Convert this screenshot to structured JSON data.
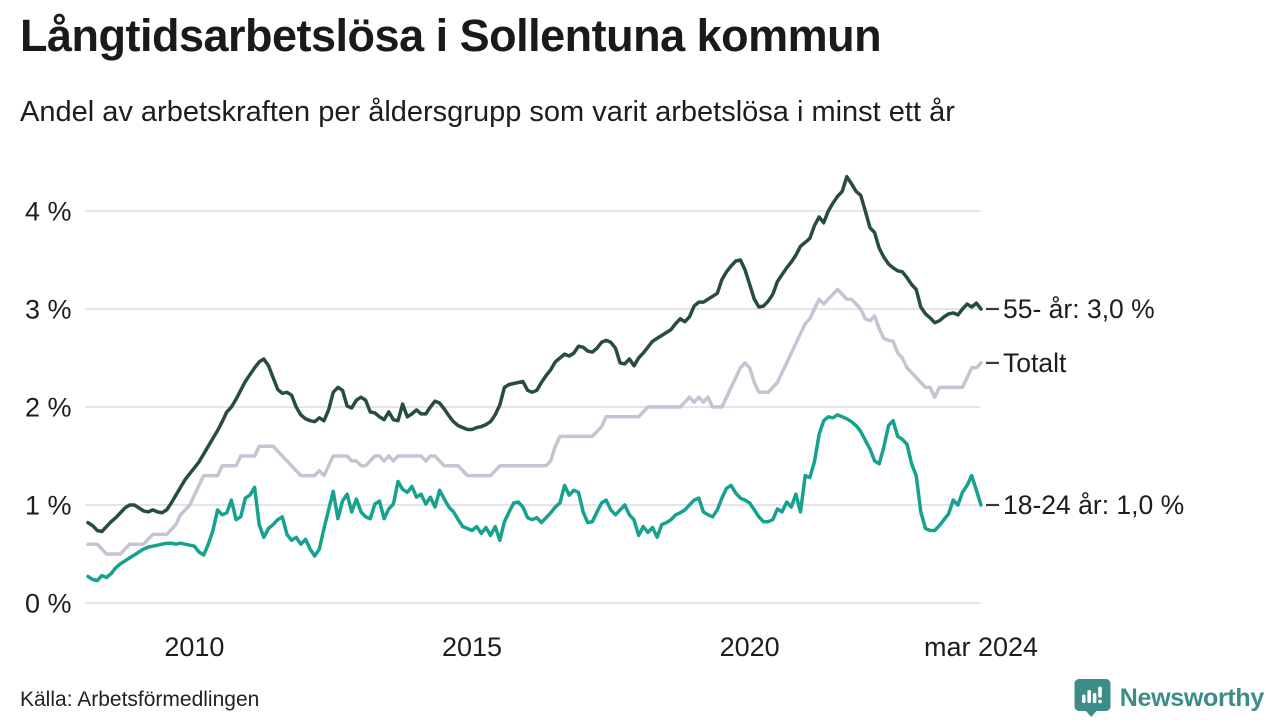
{
  "header": {
    "title": "Långtidsarbetslösa i Sollentuna kommun",
    "subtitle": "Andel av arbetskraften per åldersgrupp som varit arbetslösa i minst ett år"
  },
  "footer": {
    "source": "Källa: Arbetsförmedlingen",
    "brand": "Newsworthy"
  },
  "colors": {
    "series_55": "#294c41",
    "series_total": "#c6c4d2",
    "series_18_24": "#16a28f",
    "gridline": "#e6e4ea",
    "text": "#1d1d1d",
    "end_label_dash": "#3a3a3a",
    "brand_teal": "#3c8c87"
  },
  "chart_data": {
    "type": "line",
    "title": "Långtidsarbetslösa i Sollentuna kommun",
    "subtitle": "Andel av arbetskraften per åldersgrupp som varit arbetslösa i minst ett år",
    "source": "Källa: Arbetsförmedlingen",
    "x_start": "2008-02",
    "x_end": "2024-03",
    "frequency": "monthly",
    "grid": "horizontal",
    "legend_position": "end-of-line-labels",
    "ylim": [
      0,
      4.5
    ],
    "unit": "%",
    "y_ticks": [
      {
        "value": 0,
        "label": "0 %"
      },
      {
        "value": 1,
        "label": "1 %"
      },
      {
        "value": 2,
        "label": "2 %"
      },
      {
        "value": 3,
        "label": "3 %"
      },
      {
        "value": 4,
        "label": "4 %"
      }
    ],
    "x_ticks": [
      {
        "month_index": 23,
        "label": "2010"
      },
      {
        "month_index": 83,
        "label": "2015"
      },
      {
        "month_index": 143,
        "label": "2020"
      },
      {
        "month_index": 193,
        "label": "mar 2024"
      }
    ],
    "series": [
      {
        "name": "Totalt",
        "end_label": "Totalt",
        "end_value": 2.45,
        "color": "#c6c4d2",
        "values": [
          0.6,
          0.6,
          0.6,
          0.55,
          0.5,
          0.5,
          0.5,
          0.5,
          0.55,
          0.6,
          0.6,
          0.6,
          0.6,
          0.65,
          0.7,
          0.7,
          0.7,
          0.7,
          0.75,
          0.8,
          0.9,
          0.95,
          1.0,
          1.1,
          1.2,
          1.3,
          1.3,
          1.3,
          1.3,
          1.4,
          1.4,
          1.4,
          1.4,
          1.5,
          1.5,
          1.5,
          1.5,
          1.6,
          1.6,
          1.6,
          1.6,
          1.55,
          1.5,
          1.45,
          1.4,
          1.35,
          1.3,
          1.3,
          1.3,
          1.3,
          1.35,
          1.3,
          1.4,
          1.5,
          1.5,
          1.5,
          1.5,
          1.45,
          1.45,
          1.4,
          1.4,
          1.45,
          1.5,
          1.5,
          1.45,
          1.5,
          1.45,
          1.5,
          1.5,
          1.5,
          1.5,
          1.5,
          1.5,
          1.45,
          1.5,
          1.5,
          1.45,
          1.4,
          1.4,
          1.4,
          1.4,
          1.35,
          1.3,
          1.3,
          1.3,
          1.3,
          1.3,
          1.3,
          1.35,
          1.4,
          1.4,
          1.4,
          1.4,
          1.4,
          1.4,
          1.4,
          1.4,
          1.4,
          1.4,
          1.4,
          1.45,
          1.6,
          1.7,
          1.7,
          1.7,
          1.7,
          1.7,
          1.7,
          1.7,
          1.7,
          1.75,
          1.8,
          1.9,
          1.9,
          1.9,
          1.9,
          1.9,
          1.9,
          1.9,
          1.9,
          1.95,
          2.0,
          2.0,
          2.0,
          2.0,
          2.0,
          2.0,
          2.0,
          2.0,
          2.05,
          2.1,
          2.05,
          2.1,
          2.05,
          2.1,
          2.0,
          2.0,
          2.0,
          2.1,
          2.2,
          2.3,
          2.4,
          2.45,
          2.4,
          2.25,
          2.15,
          2.15,
          2.15,
          2.2,
          2.25,
          2.35,
          2.45,
          2.55,
          2.65,
          2.75,
          2.85,
          2.9,
          3.0,
          3.1,
          3.05,
          3.1,
          3.15,
          3.2,
          3.15,
          3.1,
          3.1,
          3.05,
          3.0,
          2.9,
          2.88,
          2.93,
          2.8,
          2.7,
          2.68,
          2.67,
          2.55,
          2.5,
          2.4,
          2.35,
          2.3,
          2.25,
          2.2,
          2.2,
          2.1,
          2.2,
          2.2,
          2.2,
          2.2,
          2.2,
          2.2,
          2.3,
          2.4,
          2.4,
          2.45
        ]
      },
      {
        "name": "55- år",
        "end_label": "55- år: 3,0 %",
        "end_value": 3.0,
        "color": "#294c41",
        "values": [
          0.82,
          0.79,
          0.74,
          0.73,
          0.78,
          0.83,
          0.87,
          0.92,
          0.97,
          1.0,
          1.0,
          0.97,
          0.94,
          0.93,
          0.95,
          0.93,
          0.92,
          0.95,
          1.02,
          1.1,
          1.18,
          1.26,
          1.32,
          1.38,
          1.44,
          1.52,
          1.6,
          1.68,
          1.76,
          1.85,
          1.95,
          2.0,
          2.08,
          2.17,
          2.26,
          2.33,
          2.4,
          2.46,
          2.49,
          2.42,
          2.3,
          2.18,
          2.14,
          2.15,
          2.12,
          2.0,
          1.92,
          1.88,
          1.86,
          1.85,
          1.89,
          1.86,
          1.97,
          2.15,
          2.2,
          2.17,
          2.01,
          1.99,
          2.07,
          2.1,
          2.07,
          1.95,
          1.94,
          1.9,
          1.87,
          1.95,
          1.87,
          1.86,
          2.03,
          1.9,
          1.93,
          1.97,
          1.93,
          1.93,
          2.0,
          2.06,
          2.04,
          1.98,
          1.91,
          1.85,
          1.81,
          1.79,
          1.77,
          1.77,
          1.79,
          1.8,
          1.82,
          1.85,
          1.92,
          2.02,
          2.2,
          2.23,
          2.24,
          2.25,
          2.26,
          2.17,
          2.15,
          2.17,
          2.25,
          2.32,
          2.38,
          2.46,
          2.5,
          2.54,
          2.52,
          2.55,
          2.62,
          2.61,
          2.57,
          2.56,
          2.6,
          2.66,
          2.68,
          2.66,
          2.6,
          2.45,
          2.44,
          2.49,
          2.42,
          2.5,
          2.55,
          2.61,
          2.67,
          2.7,
          2.73,
          2.76,
          2.79,
          2.85,
          2.9,
          2.87,
          2.92,
          3.03,
          3.07,
          3.07,
          3.1,
          3.13,
          3.16,
          3.3,
          3.38,
          3.44,
          3.49,
          3.5,
          3.4,
          3.25,
          3.1,
          3.02,
          3.03,
          3.08,
          3.15,
          3.28,
          3.35,
          3.42,
          3.48,
          3.55,
          3.64,
          3.68,
          3.72,
          3.85,
          3.94,
          3.88,
          4.0,
          4.08,
          4.15,
          4.2,
          4.35,
          4.28,
          4.2,
          4.16,
          4.0,
          3.83,
          3.78,
          3.62,
          3.53,
          3.46,
          3.42,
          3.39,
          3.38,
          3.32,
          3.25,
          3.2,
          3.02,
          2.95,
          2.91,
          2.86,
          2.88,
          2.92,
          2.95,
          2.96,
          2.94,
          3.0,
          3.05,
          3.02,
          3.06,
          3.0
        ]
      },
      {
        "name": "18-24 år",
        "end_label": "18-24 år: 1,0 %",
        "end_value": 1.0,
        "color": "#16a28f",
        "values": [
          0.27,
          0.24,
          0.23,
          0.28,
          0.26,
          0.3,
          0.36,
          0.4,
          0.43,
          0.46,
          0.49,
          0.52,
          0.55,
          0.57,
          0.58,
          0.59,
          0.6,
          0.61,
          0.61,
          0.6,
          0.61,
          0.6,
          0.59,
          0.58,
          0.52,
          0.49,
          0.6,
          0.74,
          0.95,
          0.9,
          0.92,
          1.05,
          0.85,
          0.88,
          1.07,
          1.1,
          1.18,
          0.8,
          0.67,
          0.76,
          0.8,
          0.85,
          0.88,
          0.7,
          0.64,
          0.67,
          0.6,
          0.65,
          0.55,
          0.48,
          0.55,
          0.76,
          0.95,
          1.14,
          0.86,
          1.04,
          1.11,
          0.93,
          1.06,
          0.93,
          0.88,
          0.86,
          1.01,
          1.04,
          0.86,
          0.96,
          1.01,
          1.24,
          1.16,
          1.13,
          1.19,
          1.08,
          1.11,
          1.01,
          1.08,
          0.98,
          1.15,
          1.06,
          0.98,
          0.93,
          0.85,
          0.78,
          0.76,
          0.74,
          0.78,
          0.71,
          0.77,
          0.69,
          0.78,
          0.64,
          0.83,
          0.93,
          1.02,
          1.03,
          0.98,
          0.87,
          0.85,
          0.87,
          0.82,
          0.87,
          0.92,
          0.98,
          1.02,
          1.2,
          1.1,
          1.15,
          1.13,
          0.93,
          0.82,
          0.83,
          0.93,
          1.02,
          1.05,
          0.95,
          0.9,
          0.95,
          1.0,
          0.9,
          0.85,
          0.69,
          0.78,
          0.72,
          0.77,
          0.67,
          0.8,
          0.82,
          0.85,
          0.9,
          0.92,
          0.95,
          1.0,
          1.05,
          1.07,
          0.93,
          0.9,
          0.88,
          0.95,
          1.07,
          1.17,
          1.2,
          1.12,
          1.07,
          1.05,
          1.02,
          0.95,
          0.88,
          0.83,
          0.83,
          0.85,
          0.96,
          0.93,
          1.03,
          0.98,
          1.11,
          0.93,
          1.3,
          1.28,
          1.44,
          1.72,
          1.86,
          1.9,
          1.89,
          1.92,
          1.9,
          1.88,
          1.85,
          1.81,
          1.75,
          1.66,
          1.57,
          1.45,
          1.42,
          1.59,
          1.81,
          1.86,
          1.7,
          1.67,
          1.62,
          1.42,
          1.3,
          0.93,
          0.76,
          0.74,
          0.74,
          0.79,
          0.85,
          0.91,
          1.05,
          1.0,
          1.13,
          1.2,
          1.3,
          1.15,
          1.0
        ]
      }
    ]
  }
}
